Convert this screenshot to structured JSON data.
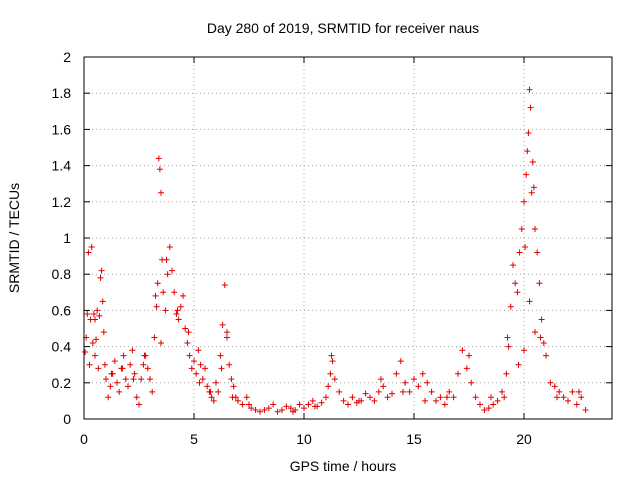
{
  "chart_data": {
    "type": "scatter",
    "title": "Day 280 of 2019, SRMTID for receiver naus",
    "xlabel": "GPS time / hours",
    "ylabel": "SRMTID / TECUs",
    "xlim": [
      0,
      24
    ],
    "ylim": [
      0,
      2
    ],
    "xticks": [
      0,
      5,
      10,
      15,
      20
    ],
    "yticks": [
      0,
      0.2,
      0.4,
      0.6,
      0.8,
      1,
      1.2,
      1.4,
      1.6,
      1.8,
      2
    ],
    "xtick_labels": [
      "0",
      "5",
      "10",
      "15",
      "20"
    ],
    "ytick_labels": [
      "0",
      "0.2",
      "0.4",
      "0.6",
      "0.8",
      "1",
      "1.2",
      "1.4",
      "1.6",
      "1.8",
      "2"
    ],
    "grid": true,
    "marker": "+",
    "color": "#e00000",
    "series": [
      {
        "name": "SRMTID",
        "x": [
          0.05,
          0.1,
          0.2,
          0.3,
          0.35,
          0.4,
          0.45,
          0.5,
          0.55,
          0.6,
          0.65,
          0.7,
          0.8,
          0.85,
          0.9,
          0.95,
          1.0,
          1.1,
          1.2,
          1.3,
          1.4,
          1.5,
          1.6,
          1.7,
          1.8,
          1.9,
          2.0,
          2.1,
          2.2,
          2.3,
          2.4,
          2.5,
          2.6,
          2.7,
          2.8,
          2.9,
          3.0,
          3.1,
          3.2,
          3.3,
          3.35,
          3.4,
          3.45,
          3.5,
          3.55,
          3.6,
          3.7,
          3.8,
          3.9,
          4.0,
          4.1,
          4.2,
          4.3,
          4.4,
          4.5,
          4.6,
          4.7,
          4.8,
          4.9,
          5.0,
          5.1,
          5.2,
          5.3,
          5.4,
          5.5,
          5.6,
          5.7,
          5.8,
          5.9,
          6.0,
          6.1,
          6.2,
          6.3,
          6.4,
          6.5,
          6.6,
          6.7,
          6.8,
          6.9,
          7.0,
          7.2,
          7.4,
          7.6,
          7.8,
          8.0,
          8.2,
          8.4,
          8.6,
          8.8,
          9.0,
          9.2,
          9.4,
          9.6,
          9.8,
          10.0,
          10.2,
          10.4,
          10.6,
          10.8,
          11.0,
          11.1,
          11.2,
          11.3,
          11.4,
          11.6,
          11.8,
          12.0,
          12.2,
          12.4,
          12.6,
          12.8,
          13.0,
          13.2,
          13.4,
          13.6,
          13.8,
          14.0,
          14.2,
          14.4,
          14.6,
          14.8,
          15.0,
          15.2,
          15.4,
          15.6,
          15.8,
          16.0,
          16.2,
          16.4,
          16.6,
          16.8,
          17.0,
          17.2,
          17.4,
          17.6,
          17.8,
          18.0,
          18.2,
          18.4,
          18.6,
          18.8,
          19.0,
          19.1,
          19.2,
          19.3,
          19.4,
          19.5,
          19.6,
          19.7,
          19.8,
          19.9,
          20.0,
          20.05,
          20.1,
          20.15,
          20.2,
          20.25,
          20.3,
          20.35,
          20.4,
          20.45,
          20.5,
          20.6,
          20.7,
          20.8,
          20.9,
          21.0,
          21.2,
          21.4,
          21.6,
          21.8,
          22.0,
          22.2,
          22.4,
          22.6,
          22.8,
          0.15,
          0.25,
          0.5,
          0.75,
          1.25,
          1.75,
          2.25,
          2.75,
          3.25,
          3.5,
          3.75,
          4.25,
          4.75,
          5.25,
          5.75,
          6.25,
          6.5,
          6.75,
          7.5,
          9.5,
          10.5,
          11.25,
          12.5,
          13.5,
          14.5,
          15.5,
          16.5,
          17.5,
          18.5,
          19.25,
          19.75,
          20.0,
          20.25,
          20.5,
          20.75,
          21.5,
          22.5
        ],
        "y": [
          0.37,
          0.45,
          0.92,
          0.55,
          0.95,
          0.42,
          0.58,
          0.35,
          0.44,
          0.6,
          0.28,
          0.57,
          0.82,
          0.65,
          0.48,
          0.3,
          0.22,
          0.12,
          0.18,
          0.25,
          0.32,
          0.2,
          0.15,
          0.28,
          0.35,
          0.22,
          0.18,
          0.3,
          0.38,
          0.25,
          0.12,
          0.08,
          0.22,
          0.3,
          0.35,
          0.28,
          0.22,
          0.15,
          0.45,
          0.62,
          0.75,
          1.44,
          1.38,
          1.25,
          0.88,
          0.7,
          0.6,
          0.8,
          0.95,
          0.82,
          0.7,
          0.58,
          0.55,
          0.62,
          0.68,
          0.5,
          0.42,
          0.35,
          0.28,
          0.32,
          0.25,
          0.38,
          0.3,
          0.22,
          0.28,
          0.18,
          0.15,
          0.12,
          0.1,
          0.2,
          0.15,
          0.35,
          0.52,
          0.74,
          0.45,
          0.3,
          0.22,
          0.18,
          0.12,
          0.1,
          0.08,
          0.12,
          0.06,
          0.05,
          0.04,
          0.05,
          0.06,
          0.08,
          0.04,
          0.05,
          0.07,
          0.06,
          0.05,
          0.08,
          0.06,
          0.08,
          0.1,
          0.07,
          0.09,
          0.12,
          0.18,
          0.25,
          0.32,
          0.22,
          0.15,
          0.1,
          0.08,
          0.12,
          0.09,
          0.1,
          0.14,
          0.12,
          0.1,
          0.15,
          0.18,
          0.12,
          0.14,
          0.25,
          0.32,
          0.2,
          0.15,
          0.22,
          0.18,
          0.25,
          0.2,
          0.15,
          0.1,
          0.12,
          0.08,
          0.15,
          0.12,
          0.25,
          0.38,
          0.28,
          0.2,
          0.12,
          0.08,
          0.05,
          0.06,
          0.08,
          0.1,
          0.15,
          0.12,
          0.25,
          0.4,
          0.62,
          0.85,
          0.75,
          0.7,
          0.92,
          1.05,
          1.2,
          0.95,
          1.35,
          1.48,
          1.58,
          1.82,
          1.72,
          1.25,
          1.42,
          1.28,
          1.05,
          0.92,
          0.75,
          0.55,
          0.42,
          0.35,
          0.2,
          0.18,
          0.15,
          0.12,
          0.1,
          0.15,
          0.08,
          0.12,
          0.05,
          0.58,
          0.3,
          0.55,
          0.78,
          0.25,
          0.28,
          0.22,
          0.35,
          0.68,
          0.42,
          0.88,
          0.6,
          0.48,
          0.2,
          0.15,
          0.28,
          0.48,
          0.12,
          0.08,
          0.04,
          0.07,
          0.35,
          0.1,
          0.22,
          0.15,
          0.1,
          0.12,
          0.35,
          0.12,
          0.45,
          0.3,
          0.38,
          0.65,
          0.48,
          0.45,
          0.12,
          0.15
        ]
      }
    ]
  }
}
